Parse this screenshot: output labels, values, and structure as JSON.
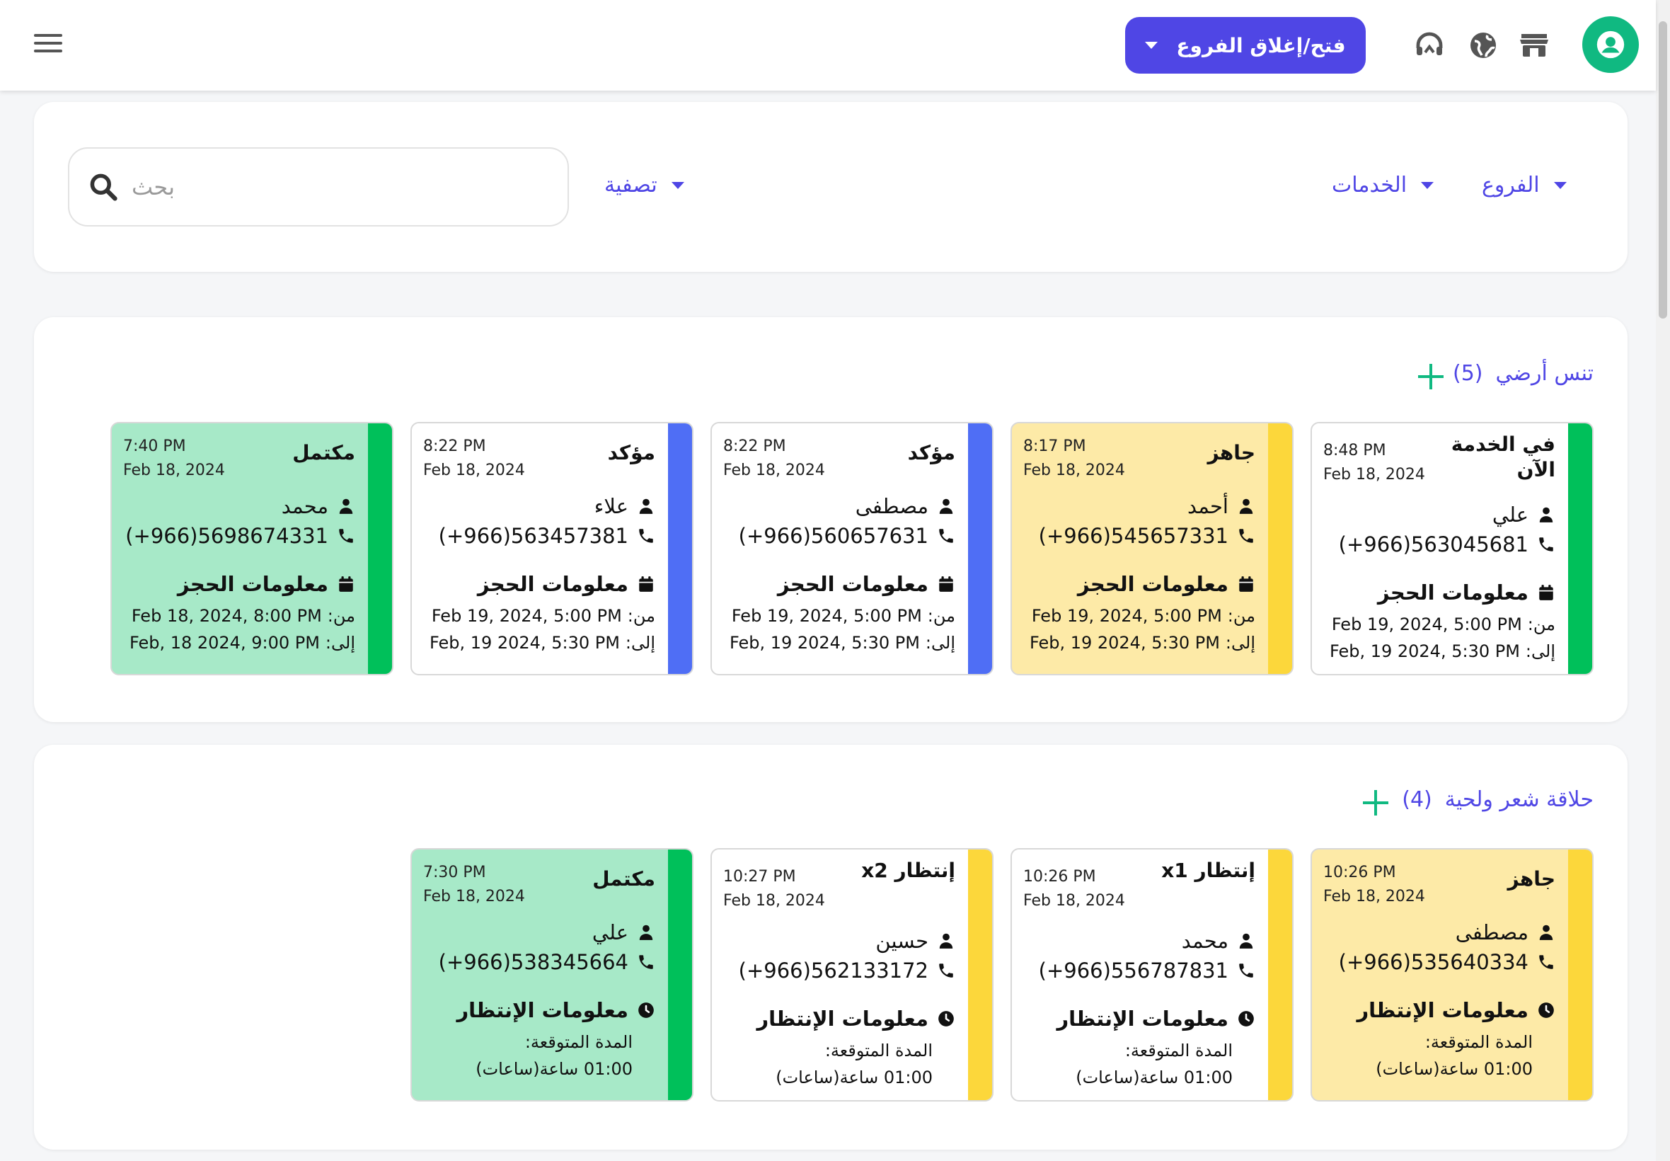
{
  "topbar": {
    "branch_toggle_label": "فتح/إغلاق الفروع",
    "brand_color": "#4f46e5"
  },
  "filters": {
    "search_placeholder": "بحث",
    "filter_label": "تصفية",
    "services_label": "الخدمات",
    "branches_label": "الفروع"
  },
  "sections": [
    {
      "title": "تنس أرضي",
      "count": "(5)",
      "cards": [
        {
          "status": "في الخدمة الآن",
          "time": "8:48 PM",
          "date": "Feb 18, 2024",
          "name": "علي",
          "phone": "(+966)563045681",
          "info_title": "معلومات الحجز",
          "from_label": "من:",
          "from": "Feb 19, 2024, 5:00 PM",
          "to_label": "إلى:",
          "to": "Feb, 19 2024, 5:30 PM",
          "color": "#00c05a",
          "bg": "#ffffff"
        },
        {
          "status": "جاهز",
          "time": "8:17 PM",
          "date": "Feb 18, 2024",
          "name": "أحمد",
          "phone": "(+966)545657331",
          "info_title": "معلومات الحجز",
          "from_label": "من:",
          "from": "Feb 19, 2024, 5:00 PM",
          "to_label": "إلى:",
          "to": "Feb, 19 2024, 5:30 PM",
          "color": "#fcd73b",
          "bg": "#fdeaa7"
        },
        {
          "status": "مؤكد",
          "time": "8:22 PM",
          "date": "Feb 18, 2024",
          "name": "مصطفى",
          "phone": "(+966)560657631",
          "info_title": "معلومات الحجز",
          "from_label": "من:",
          "from": "Feb 19, 2024, 5:00 PM",
          "to_label": "إلى:",
          "to": "Feb, 19 2024, 5:30 PM",
          "color": "#4f6ef5",
          "bg": "#ffffff"
        },
        {
          "status": "مؤكد",
          "time": "8:22 PM",
          "date": "Feb 18, 2024",
          "name": "علاء",
          "phone": "(+966)563457381",
          "info_title": "معلومات الحجز",
          "from_label": "من:",
          "from": "Feb 19, 2024, 5:00 PM",
          "to_label": "إلى:",
          "to": "Feb, 19 2024, 5:30 PM",
          "color": "#4f6ef5",
          "bg": "#ffffff"
        },
        {
          "status": "مكتمل",
          "time": "7:40 PM",
          "date": "Feb 18, 2024",
          "name": "محمد",
          "phone": "(+966)5698674331",
          "info_title": "معلومات الحجز",
          "from_label": "من:",
          "from": "Feb 18, 2024, 8:00 PM",
          "to_label": "إلى:",
          "to": "Feb, 18 2024, 9:00 PM",
          "color": "#00c05a",
          "bg": "#a7e9c8"
        }
      ]
    },
    {
      "title": "حلاقة شعر ولحية",
      "count": "(4)",
      "cards": [
        {
          "status": "جاهز",
          "time": "10:26 PM",
          "date": "Feb 18, 2024",
          "name": "مصطفى",
          "phone": "(+966)535640334",
          "info_title": "معلومات الإنتظار",
          "duration_label": "المدة المتوقعة:",
          "duration": "01:00 ساعة(ساعات)",
          "color": "#fcd73b",
          "bg": "#fdeaa7"
        },
        {
          "status": "إنتظار x1",
          "time": "10:26 PM",
          "date": "Feb 18, 2024",
          "name": "محمد",
          "phone": "(+966)556787831",
          "info_title": "معلومات الإنتظار",
          "duration_label": "المدة المتوقعة:",
          "duration": "01:00 ساعة(ساعات)",
          "color": "#fcd73b",
          "bg": "#ffffff"
        },
        {
          "status": "إنتظار x2",
          "time": "10:27 PM",
          "date": "Feb 18, 2024",
          "name": "حسين",
          "phone": "(+966)562133172",
          "info_title": "معلومات الإنتظار",
          "duration_label": "المدة المتوقعة:",
          "duration": "01:00 ساعة(ساعات)",
          "color": "#fcd73b",
          "bg": "#ffffff"
        },
        {
          "status": "مكتمل",
          "time": "7:30 PM",
          "date": "Feb 18, 2024",
          "name": "علي",
          "phone": "(+966)538345664",
          "info_title": "معلومات الإنتظار",
          "duration_label": "المدة المتوقعة:",
          "duration": "01:00 ساعة(ساعات)",
          "color": "#00c05a",
          "bg": "#a7e9c8"
        }
      ]
    }
  ]
}
